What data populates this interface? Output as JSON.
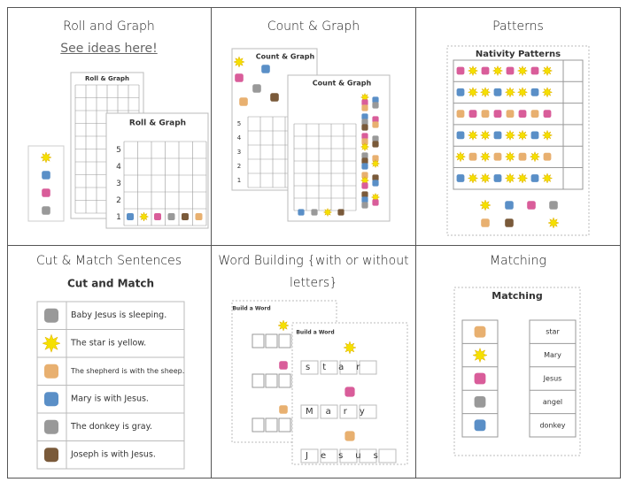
{
  "cells": [
    {
      "title": "Roll and Graph",
      "link": "See ideas here!",
      "headings": [
        "Roll & Graph",
        "Roll & Graph"
      ],
      "numbers": [
        "5",
        "4",
        "3",
        "2",
        "1"
      ]
    },
    {
      "title": "Count & Graph",
      "headings": [
        "Count & Graph",
        "Count & Graph"
      ],
      "numbers": [
        "5",
        "4",
        "3",
        "2",
        "1"
      ]
    },
    {
      "title": "Patterns",
      "headings": [
        "Nativity Patterns"
      ]
    },
    {
      "title": "Cut & Match Sentences",
      "headings": [
        "Cut and Match"
      ],
      "sentences": [
        "Baby Jesus is sleeping.",
        "The star is yellow.",
        "The shepherd is with the sheep.",
        "Mary is with Jesus.",
        "The donkey is gray.",
        "Joseph is with Jesus."
      ]
    },
    {
      "title": "Word Building {with or without letters}",
      "headings": [
        "Build a Word",
        "Build a Word"
      ],
      "words": [
        "star",
        "Mary",
        "Jesus"
      ]
    },
    {
      "title": "Matching",
      "headings": [
        "Matching"
      ],
      "words": [
        "star",
        "Mary",
        "Jesus",
        "angel",
        "donkey"
      ]
    }
  ]
}
